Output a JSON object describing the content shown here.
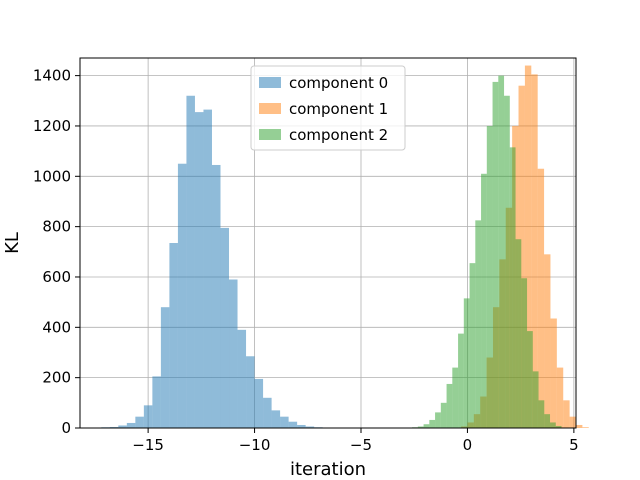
{
  "chart_data": {
    "type": "histogram",
    "xlabel": "iteration",
    "ylabel": "KL",
    "xlim": [
      -18.2,
      5.1
    ],
    "ylim": [
      0,
      1470
    ],
    "xticks": [
      -15,
      -10,
      -5,
      0,
      5
    ],
    "yticks": [
      0,
      200,
      400,
      600,
      800,
      1000,
      1200,
      1400
    ],
    "xtick_labels": [
      "−15",
      "−10",
      "−5",
      "0",
      "5"
    ],
    "ytick_labels": [
      "0",
      "200",
      "400",
      "600",
      "800",
      "1000",
      "1200",
      "1400"
    ],
    "grid": true,
    "legend_position": "top-center",
    "series": [
      {
        "name": "component 0",
        "color": "#1f77b4",
        "opacity": 0.5,
        "bin_start": -17.2,
        "bin_width": 0.4,
        "values": [
          3,
          4,
          10,
          20,
          45,
          90,
          205,
          480,
          735,
          1050,
          1320,
          1255,
          1265,
          1045,
          795,
          590,
          390,
          285,
          195,
          120,
          70,
          45,
          25,
          12,
          6,
          3
        ]
      },
      {
        "name": "component 1",
        "color": "#ff7f0e",
        "opacity": 0.5,
        "bin_start": -0.6,
        "bin_width": 0.3,
        "values": [
          2,
          6,
          22,
          55,
          125,
          280,
          480,
          670,
          875,
          1200,
          1360,
          1440,
          1405,
          1030,
          690,
          435,
          240,
          110,
          45,
          12,
          3
        ]
      },
      {
        "name": "component 2",
        "color": "#2ca02c",
        "opacity": 0.5,
        "bin_start": -2.6,
        "bin_width": 0.27,
        "values": [
          3,
          6,
          15,
          32,
          62,
          100,
          175,
          240,
          375,
          515,
          655,
          825,
          1010,
          1200,
          1375,
          1400,
          1320,
          1115,
          750,
          595,
          385,
          225,
          110,
          55,
          22,
          8,
          2
        ]
      }
    ]
  }
}
